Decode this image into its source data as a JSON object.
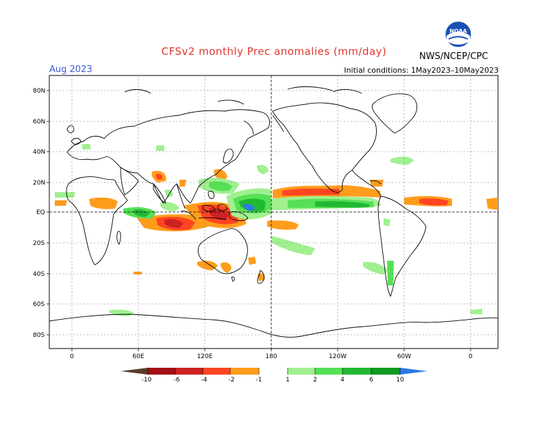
{
  "header": {
    "title": "CFSv2 monthly Prec anomalies (mm/day)",
    "month": "Aug 2023",
    "initial_conditions": "Initial conditions: 1May2023–10May2023",
    "agency": "NWS/NCEP/CPC",
    "logo_text": "NOAA"
  },
  "map": {
    "lat_labels": [
      "80N",
      "60N",
      "40N",
      "20N",
      "EQ",
      "20S",
      "40S",
      "60S",
      "80S"
    ],
    "lon_labels": [
      "0",
      "60E",
      "120E",
      "180",
      "120W",
      "60W",
      "0"
    ]
  },
  "colorbar": {
    "labels": [
      "-10",
      "-6",
      "-4",
      "-2",
      "-1",
      "1",
      "2",
      "4",
      "6",
      "10"
    ],
    "colors": {
      "below_-10": "#5a3a2a",
      "-10_-6": "#a50f15",
      "-6_-4": "#cc2222",
      "-4_-2": "#ff4422",
      "-2_-1": "#ff9c1c",
      "-1_1": "#ffffff",
      "1_2": "#a0f090",
      "2_4": "#55e055",
      "4_6": "#22b833",
      "6_10": "#119a22",
      "above_10": "#2a7ae8"
    }
  }
}
